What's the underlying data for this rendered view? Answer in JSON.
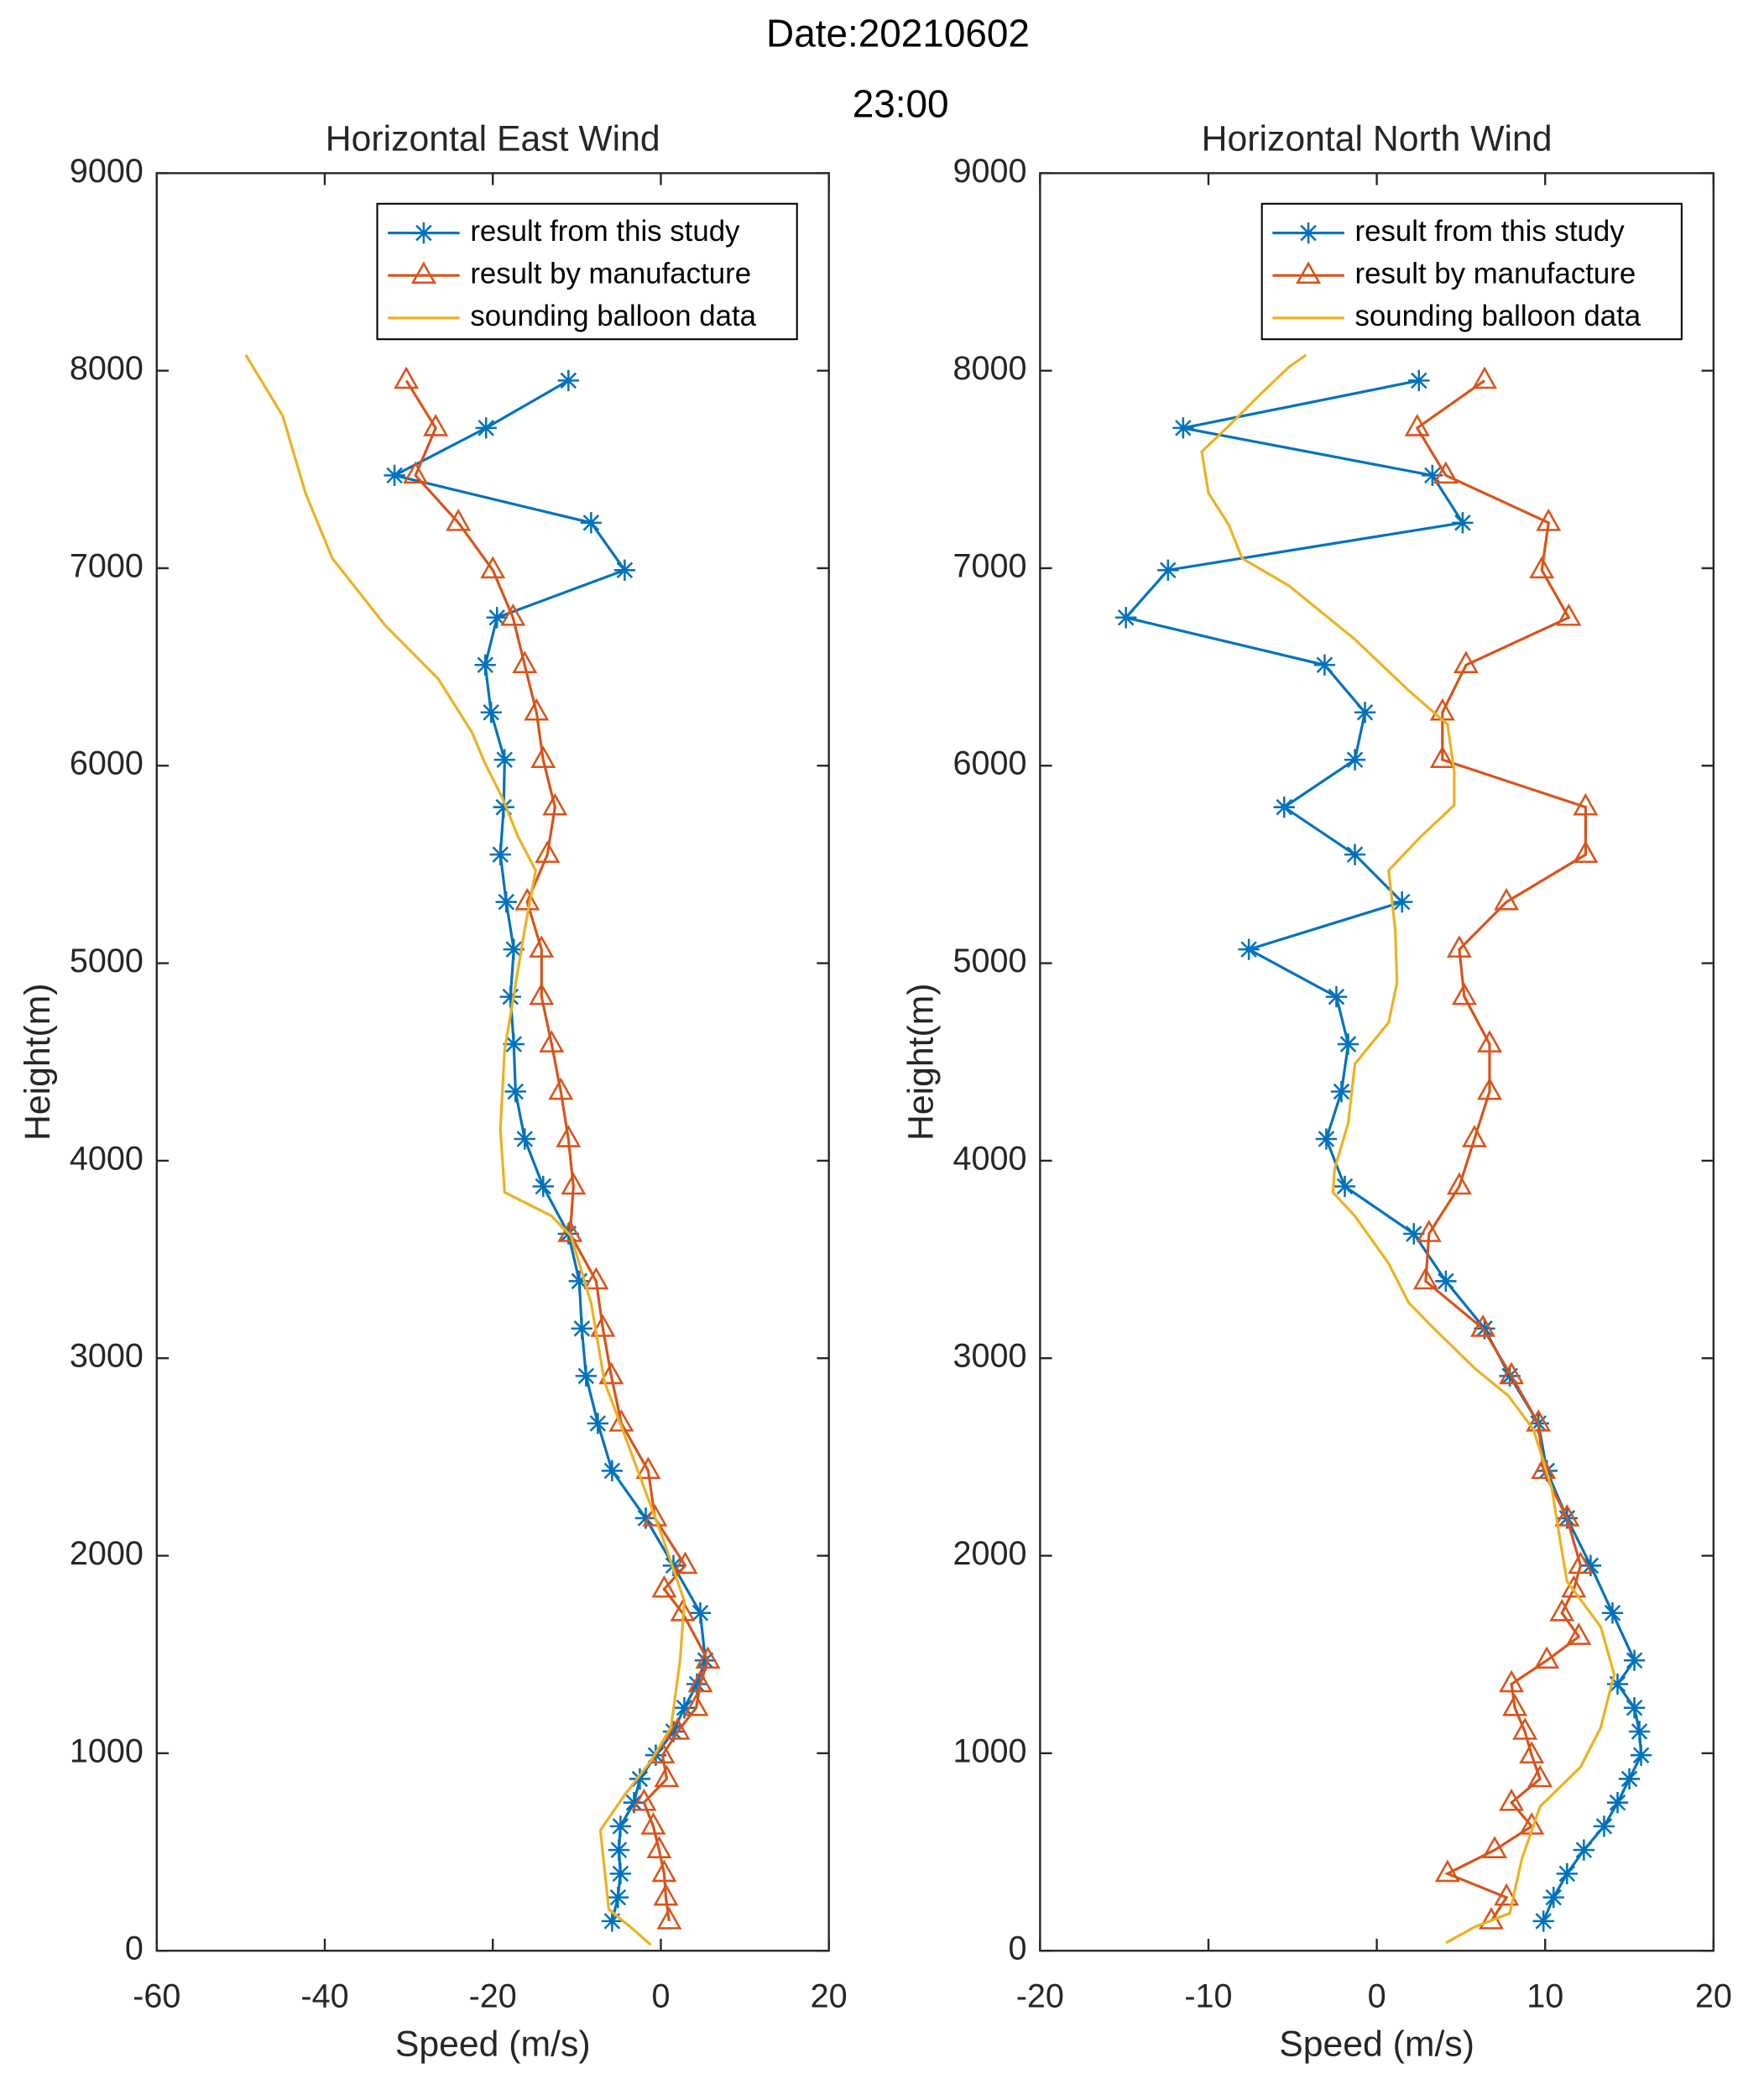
{
  "title_lines": [
    "Date:20210602",
    "23:00"
  ],
  "chart_data": [
    {
      "type": "line",
      "title": "Horizontal East Wind",
      "xlabel": "Speed (m/s)",
      "ylabel": "Height(m)",
      "xlim": [
        -60,
        20
      ],
      "xticks": [
        -60,
        -40,
        -20,
        0,
        20
      ],
      "ylim": [
        0,
        9000
      ],
      "yticks": [
        0,
        1000,
        2000,
        3000,
        4000,
        5000,
        6000,
        7000,
        8000,
        9000
      ],
      "legend": "upper right",
      "series": [
        {
          "name": "result from this study",
          "color": "#0072bd",
          "marker": "*",
          "x": [
            -5.8,
            -5.1,
            -4.8,
            -5.0,
            -4.8,
            -3.2,
            -2.5,
            -0.6,
            1.5,
            2.8,
            4.3,
            5.3,
            4.7,
            1.5,
            -1.8,
            -5.8,
            -7.5,
            -8.9,
            -9.4,
            -9.7,
            -11.0,
            -14.0,
            -16.2,
            -17.3,
            -17.5,
            -17.9,
            -17.5,
            -18.4,
            -19.1,
            -18.7,
            -18.6,
            -20.2,
            -20.9,
            -19.5,
            -4.3,
            -8.3,
            -31.7,
            -20.8,
            -11.0
          ],
          "values": [
            150,
            270,
            390,
            510,
            630,
            750,
            870,
            990,
            1110,
            1230,
            1350,
            1470,
            1710,
            1950,
            2190,
            2430,
            2670,
            2910,
            3150,
            3390,
            3630,
            3870,
            4110,
            4350,
            4590,
            4830,
            5070,
            5310,
            5550,
            5790,
            6030,
            6270,
            6510,
            6750,
            6990,
            7230,
            7470,
            7710,
            7950
          ]
        },
        {
          "name": "result by manufacture",
          "color": "#d95319",
          "marker": "^",
          "x": [
            1.0,
            0.6,
            0.4,
            -0.2,
            -0.9,
            -2.0,
            0.7,
            0.2,
            2.0,
            4.2,
            4.7,
            5.6,
            2.6,
            0.4,
            2.9,
            -0.7,
            -1.5,
            -4.7,
            -5.9,
            -6.9,
            -7.7,
            -10.8,
            -10.4,
            -11.0,
            -11.9,
            -13.0,
            -14.2,
            -14.2,
            -15.9,
            -13.5,
            -12.6,
            -14.0,
            -14.8,
            -16.2,
            -17.6,
            -20.0,
            -24.1,
            -29.2,
            -26.8,
            -30.3
          ],
          "values": [
            150,
            270,
            390,
            510,
            630,
            750,
            870,
            990,
            1110,
            1230,
            1350,
            1470,
            1710,
            1830,
            1950,
            2190,
            2430,
            2670,
            2910,
            3150,
            3390,
            3630,
            3870,
            4110,
            4350,
            4590,
            4830,
            5070,
            5310,
            5550,
            5790,
            6030,
            6270,
            6510,
            6750,
            6990,
            7230,
            7470,
            7710,
            7950
          ]
        },
        {
          "name": "sounding balloon data",
          "color": "#edb120",
          "marker": "none",
          "x": [
            -1.2,
            -3.6,
            -6.2,
            -7.2,
            -4.3,
            -1.2,
            1.2,
            2.3,
            2.8,
            0.4,
            -4.3,
            -6.7,
            -8.3,
            -10.7,
            -13.0,
            -18.6,
            -19.1,
            -18.6,
            -16.2,
            -14.9,
            -17.0,
            -18.9,
            -20.9,
            -22.5,
            -26.5,
            -32.8,
            -39.1,
            -42.3,
            -45.0,
            -49.4
          ],
          "values": [
            30,
            120,
            210,
            610,
            790,
            960,
            1130,
            1470,
            1770,
            2070,
            2610,
            2880,
            3280,
            3620,
            3720,
            3840,
            4160,
            4560,
            5170,
            5470,
            5640,
            5840,
            6010,
            6170,
            6440,
            6710,
            7050,
            7380,
            7770,
            8080
          ]
        }
      ]
    },
    {
      "type": "line",
      "title": "Horizontal North Wind",
      "xlabel": "Speed (m/s)",
      "ylabel": "Height(m)",
      "xlim": [
        -20,
        20
      ],
      "xticks": [
        -20,
        -10,
        0,
        10,
        20
      ],
      "ylim": [
        0,
        9000
      ],
      "yticks": [
        0,
        1000,
        2000,
        3000,
        4000,
        5000,
        6000,
        7000,
        8000,
        9000
      ],
      "legend": "upper right",
      "series": [
        {
          "name": "result from this study",
          "color": "#0072bd",
          "marker": "*",
          "x": [
            9.9,
            10.5,
            11.3,
            12.3,
            13.5,
            14.3,
            15.0,
            15.7,
            15.6,
            15.3,
            14.3,
            15.3,
            14.0,
            12.7,
            11.3,
            10.1,
            9.6,
            7.9,
            6.4,
            4.1,
            2.2,
            -1.9,
            -3.0,
            -2.1,
            -1.7,
            -2.4,
            -7.6,
            1.5,
            -1.3,
            -5.5,
            -1.3,
            -0.7,
            -3.1,
            -14.9,
            -12.4,
            5.1,
            3.3,
            -11.5,
            2.5
          ],
          "values": [
            150,
            270,
            390,
            510,
            630,
            750,
            870,
            990,
            1110,
            1230,
            1350,
            1470,
            1710,
            1950,
            2190,
            2430,
            2670,
            2910,
            3150,
            3390,
            3630,
            3870,
            4110,
            4350,
            4590,
            4830,
            5070,
            5310,
            5550,
            5790,
            6030,
            6270,
            6510,
            6750,
            6990,
            7230,
            7470,
            7710,
            7950
          ]
        },
        {
          "name": "result by manufacture",
          "color": "#d95319",
          "marker": "^",
          "x": [
            6.8,
            7.7,
            4.2,
            7.0,
            9.2,
            8.0,
            9.7,
            9.2,
            8.8,
            8.2,
            8.0,
            10.1,
            12.0,
            11.0,
            11.7,
            12.1,
            11.3,
            9.9,
            9.6,
            8.0,
            6.3,
            2.9,
            3.1,
            4.9,
            5.8,
            6.7,
            6.7,
            5.2,
            4.9,
            7.7,
            12.4,
            12.4,
            3.9,
            3.9,
            5.3,
            11.4,
            9.8,
            10.2,
            4.1,
            2.4,
            6.4
          ],
          "values": [
            150,
            270,
            390,
            510,
            630,
            750,
            870,
            990,
            1110,
            1230,
            1350,
            1470,
            1590,
            1710,
            1830,
            1950,
            2190,
            2430,
            2670,
            2910,
            3150,
            3390,
            3630,
            3870,
            4110,
            4350,
            4590,
            4830,
            5070,
            5310,
            5550,
            5790,
            6030,
            6270,
            6510,
            6750,
            6990,
            7230,
            7470,
            7710,
            7950
          ]
        },
        {
          "name": "sounding balloon data",
          "color": "#edb120",
          "marker": "none",
          "x": [
            4.1,
            5.8,
            7.9,
            8.6,
            9.7,
            12.1,
            13.3,
            14.1,
            13.3,
            11.3,
            10.9,
            10.4,
            9.3,
            7.8,
            5.8,
            3.4,
            1.9,
            0.7,
            -1.3,
            -2.6,
            -2.5,
            -1.7,
            -1.3,
            0.7,
            1.2,
            1.1,
            0.7,
            2.6,
            4.6,
            4.6,
            4.2,
            1.9,
            -1.3,
            -5.2,
            -8.0,
            -8.8,
            -10.0,
            -10.4,
            -8.8,
            -6.8,
            -5.2,
            -4.2
          ],
          "values": [
            40,
            120,
            190,
            460,
            730,
            930,
            1130,
            1400,
            1640,
            1870,
            2070,
            2340,
            2640,
            2810,
            2950,
            3150,
            3280,
            3480,
            3720,
            3840,
            3960,
            4190,
            4490,
            4700,
            4900,
            5170,
            5470,
            5640,
            5800,
            5970,
            6210,
            6380,
            6640,
            6910,
            7050,
            7220,
            7380,
            7590,
            7720,
            7890,
            8020,
            8080
          ]
        }
      ]
    }
  ]
}
